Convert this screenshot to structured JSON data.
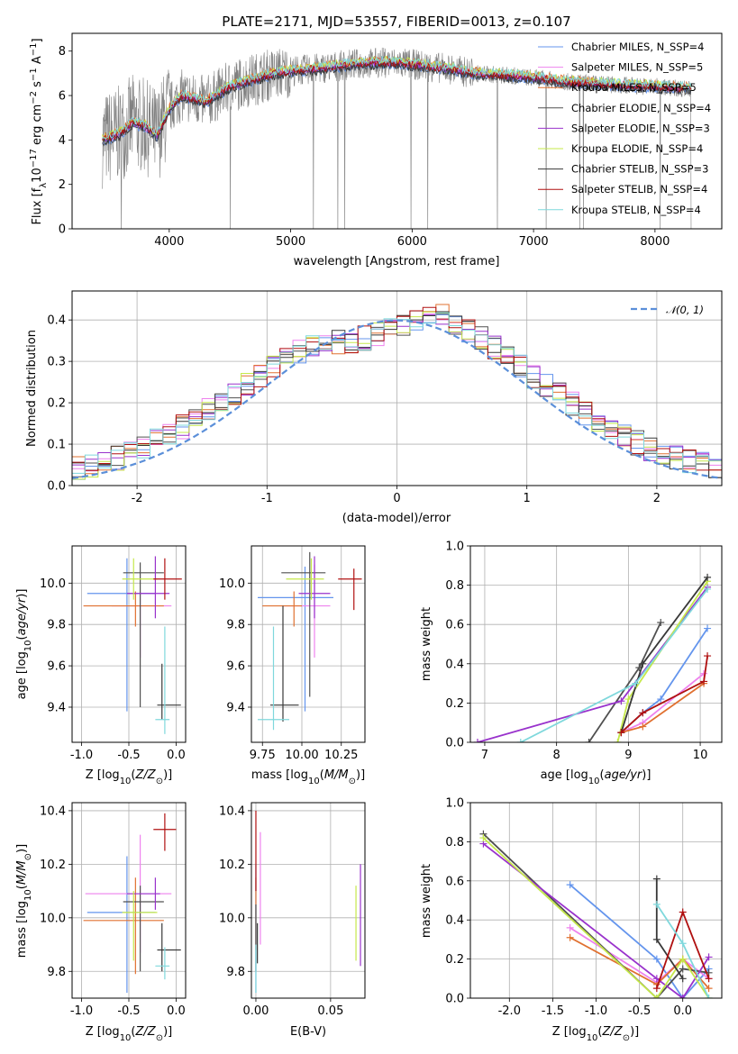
{
  "chart_data": [
    {
      "type": "line",
      "title": "PLATE=2171, MJD=53557, FIBERID=0013, z=0.107",
      "xlabel": "wavelength [Angstrom, rest frame]",
      "ylabel": "Flux [f_λ 10^-17 erg cm^-2 s^-1 A^-1]",
      "xlim": [
        3200,
        8550
      ],
      "ylim": [
        0,
        8.8
      ],
      "xticks": [
        4000,
        5000,
        6000,
        7000,
        8000
      ],
      "yticks": [
        0,
        2,
        4,
        6,
        8
      ],
      "legend_position": "right",
      "observed_spectrum_color": "#808080",
      "model_continuum": {
        "x": [
          3450,
          3600,
          3700,
          3800,
          3900,
          4000,
          4100,
          4300,
          4500,
          4800,
          5000,
          5200,
          5500,
          5800,
          6000,
          6300,
          6500,
          6800,
          7000,
          7300,
          7600,
          8000,
          8300
        ],
        "y": [
          4.0,
          4.3,
          4.8,
          4.6,
          4.2,
          5.4,
          6.0,
          5.7,
          6.4,
          6.9,
          7.1,
          7.2,
          7.4,
          7.5,
          7.4,
          7.2,
          7.0,
          6.9,
          6.8,
          6.6,
          6.5,
          6.4,
          6.3
        ]
      },
      "series": [
        {
          "name": "Chabrier MILES, N_SSP=4",
          "color": "#6495ed"
        },
        {
          "name": "Salpeter MILES, N_SSP=5",
          "color": "#ee82ee"
        },
        {
          "name": "Kroupa MILES, N_SSP=5",
          "color": "#e07030"
        },
        {
          "name": "Chabrier ELODIE, N_SSP=4",
          "color": "#505050"
        },
        {
          "name": "Salpeter ELODIE, N_SSP=3",
          "color": "#9932cc"
        },
        {
          "name": "Kroupa ELODIE, N_SSP=4",
          "color": "#c5e84a"
        },
        {
          "name": "Chabrier STELIB, N_SSP=3",
          "color": "#383838"
        },
        {
          "name": "Salpeter STELIB, N_SSP=4",
          "color": "#b01010"
        },
        {
          "name": "Kroupa STELIB, N_SSP=4",
          "color": "#7fd8dc"
        }
      ]
    },
    {
      "type": "line",
      "xlabel": "(data-model)/error",
      "ylabel": "Normed distribution",
      "xlim": [
        -2.5,
        2.5
      ],
      "ylim": [
        0,
        0.47
      ],
      "xticks": [
        -2,
        -1,
        0,
        1,
        2
      ],
      "yticks": [
        0.0,
        0.1,
        0.2,
        0.3,
        0.4
      ],
      "legend": "𝒩(0, 1)",
      "legend_position": "top-right",
      "normal_color": "#5b8fd9",
      "histogram_bin_width": 0.1,
      "histogram_base": [
        0.045,
        0.05,
        0.058,
        0.067,
        0.078,
        0.092,
        0.108,
        0.125,
        0.143,
        0.163,
        0.183,
        0.204,
        0.225,
        0.247,
        0.268,
        0.287,
        0.305,
        0.321,
        0.334,
        0.343,
        0.348,
        0.35,
        0.356,
        0.365,
        0.378,
        0.392,
        0.405,
        0.412,
        0.408,
        0.395,
        0.376,
        0.355,
        0.332,
        0.31,
        0.287,
        0.264,
        0.241,
        0.218,
        0.196,
        0.175,
        0.155,
        0.136,
        0.119,
        0.103,
        0.089,
        0.077,
        0.066,
        0.057,
        0.05,
        0.045
      ]
    },
    {
      "type": "scatter",
      "xlabel": "Z [log10(Z/Z⊙)]",
      "ylabel": "age  [log10(age/yr)]",
      "xlim": [
        -1.1,
        0.1
      ],
      "ylim": [
        9.23,
        10.18
      ],
      "xticks": [
        -1.0,
        -0.5,
        0.0
      ],
      "yticks": [
        9.4,
        9.6,
        9.8,
        10.0
      ],
      "points": [
        {
          "x": -0.52,
          "y": 9.95,
          "xerr": [
            0.42,
            0.3
          ],
          "yerr": [
            0.57,
            0.17
          ],
          "color": "#6495ed"
        },
        {
          "x": -0.38,
          "y": 9.89,
          "xerr": [
            0.3,
            0.33
          ],
          "yerr": [
            0.25,
            0.07
          ],
          "color": "#ee82ee"
        },
        {
          "x": -0.43,
          "y": 9.89,
          "xerr": [
            0.55,
            0.3
          ],
          "yerr": [
            0.1,
            0.07
          ],
          "color": "#e07030"
        },
        {
          "x": -0.38,
          "y": 10.05,
          "xerr": [
            0.18,
            0.25
          ],
          "yerr": [
            0.65,
            0.05
          ],
          "color": "#505050"
        },
        {
          "x": -0.22,
          "y": 9.95,
          "xerr": [
            0.3,
            0.15
          ],
          "yerr": [
            0.12,
            0.18
          ],
          "color": "#9932cc"
        },
        {
          "x": -0.45,
          "y": 10.02,
          "xerr": [
            0.12,
            0.25
          ],
          "yerr": [
            0.1,
            0.1
          ],
          "color": "#c5e84a"
        },
        {
          "x": -0.15,
          "y": 9.41,
          "xerr": [
            0.05,
            0.2
          ],
          "yerr": [
            0.07,
            0.2
          ],
          "color": "#383838"
        },
        {
          "x": -0.12,
          "y": 10.02,
          "xerr": [
            0.12,
            0.18
          ],
          "yerr": [
            0.1,
            0.1
          ],
          "color": "#b01010"
        },
        {
          "x": -0.12,
          "y": 9.34,
          "xerr": [
            0.1,
            0.05
          ],
          "yerr": [
            0.07,
            0.45
          ],
          "color": "#7fd8dc"
        }
      ]
    },
    {
      "type": "scatter",
      "xlabel": "mass [log10(M/M⊙)]",
      "ylabel": "",
      "xlim": [
        9.68,
        10.4
      ],
      "ylim": [
        9.23,
        10.18
      ],
      "xticks": [
        9.75,
        10.0,
        10.25
      ],
      "yticks": [
        9.4,
        9.6,
        9.8,
        10.0
      ],
      "points": [
        {
          "x": 10.02,
          "y": 9.93,
          "xerr": [
            0.3,
            0.18
          ],
          "yerr": [
            0.55,
            0.15
          ],
          "color": "#6495ed"
        },
        {
          "x": 10.08,
          "y": 9.89,
          "xerr": [
            0.2,
            0.1
          ],
          "yerr": [
            0.25,
            0.2
          ],
          "color": "#ee82ee"
        },
        {
          "x": 9.95,
          "y": 9.89,
          "xerr": [
            0.2,
            0.05
          ],
          "yerr": [
            0.1,
            0.07
          ],
          "color": "#e07030"
        },
        {
          "x": 10.05,
          "y": 10.05,
          "xerr": [
            0.18,
            0.1
          ],
          "yerr": [
            0.6,
            0.1
          ],
          "color": "#505050"
        },
        {
          "x": 10.08,
          "y": 9.95,
          "xerr": [
            0.1,
            0.1
          ],
          "yerr": [
            0.12,
            0.18
          ],
          "color": "#9932cc"
        },
        {
          "x": 10.06,
          "y": 10.02,
          "xerr": [
            0.16,
            0.08
          ],
          "yerr": [
            0.1,
            0.1
          ],
          "color": "#c5e84a"
        },
        {
          "x": 9.88,
          "y": 9.41,
          "xerr": [
            0.08,
            0.1
          ],
          "yerr": [
            0.08,
            0.48
          ],
          "color": "#383838"
        },
        {
          "x": 10.33,
          "y": 10.02,
          "xerr": [
            0.1,
            0.05
          ],
          "yerr": [
            0.15,
            0.05
          ],
          "color": "#b01010"
        },
        {
          "x": 9.82,
          "y": 9.34,
          "xerr": [
            0.1,
            0.1
          ],
          "yerr": [
            0.05,
            0.45
          ],
          "color": "#7fd8dc"
        }
      ]
    },
    {
      "type": "line",
      "xlabel": "age  [log10(age/yr)]",
      "ylabel": "mass weight",
      "xlim": [
        6.8,
        10.3
      ],
      "ylim": [
        0,
        1.0
      ],
      "xticks": [
        7,
        8,
        9,
        10
      ],
      "yticks": [
        0.0,
        0.2,
        0.4,
        0.6,
        0.8,
        1.0
      ],
      "series": [
        {
          "color": "#6495ed",
          "x": [
            8.9,
            9.2,
            9.45,
            10.1
          ],
          "y": [
            0.05,
            0.15,
            0.22,
            0.58
          ]
        },
        {
          "color": "#ee82ee",
          "x": [
            8.9,
            9.2,
            10.05
          ],
          "y": [
            0.05,
            0.1,
            0.35
          ]
        },
        {
          "color": "#e07030",
          "x": [
            8.9,
            9.2,
            10.05
          ],
          "y": [
            0.05,
            0.08,
            0.3
          ]
        },
        {
          "color": "#505050",
          "x": [
            8.45,
            9.15,
            9.45
          ],
          "y": [
            0.0,
            0.38,
            0.61
          ]
        },
        {
          "color": "#9932cc",
          "x": [
            6.9,
            8.9,
            10.1
          ],
          "y": [
            0.0,
            0.21,
            0.79
          ]
        },
        {
          "color": "#c5e84a",
          "x": [
            8.85,
            9.0,
            10.1
          ],
          "y": [
            0.0,
            0.22,
            0.82
          ]
        },
        {
          "color": "#383838",
          "x": [
            8.9,
            9.2,
            10.1
          ],
          "y": [
            0.05,
            0.4,
            0.84
          ]
        },
        {
          "color": "#b01010",
          "x": [
            8.9,
            9.2,
            10.05,
            10.1
          ],
          "y": [
            0.05,
            0.15,
            0.31,
            0.44
          ]
        },
        {
          "color": "#7fd8dc",
          "x": [
            7.5,
            9.1,
            10.1
          ],
          "y": [
            0.0,
            0.3,
            0.78
          ]
        }
      ]
    },
    {
      "type": "scatter",
      "xlabel": "Z [log10(Z/Z⊙)]",
      "ylabel": "mass [log10(M/M⊙)]",
      "xlim": [
        -1.1,
        0.1
      ],
      "ylim": [
        9.7,
        10.43
      ],
      "xticks": [
        -1.0,
        -0.5,
        0.0
      ],
      "yticks": [
        9.8,
        10.0,
        10.2,
        10.4
      ],
      "points": [
        {
          "x": -0.52,
          "y": 10.02,
          "xerr": [
            0.42,
            0.3
          ],
          "yerr": [
            0.3,
            0.21
          ],
          "color": "#6495ed"
        },
        {
          "x": -0.38,
          "y": 10.09,
          "xerr": [
            0.58,
            0.33
          ],
          "yerr": [
            0.22,
            0.22
          ],
          "color": "#ee82ee"
        },
        {
          "x": -0.43,
          "y": 9.99,
          "xerr": [
            0.55,
            0.3
          ],
          "yerr": [
            0.2,
            0.16
          ],
          "color": "#e07030"
        },
        {
          "x": -0.38,
          "y": 10.06,
          "xerr": [
            0.18,
            0.25
          ],
          "yerr": [
            0.26,
            0.06
          ],
          "color": "#505050"
        },
        {
          "x": -0.22,
          "y": 10.09,
          "xerr": [
            0.3,
            0.05
          ],
          "yerr": [
            0.06,
            0.06
          ],
          "color": "#9932cc"
        },
        {
          "x": -0.45,
          "y": 10.02,
          "xerr": [
            0.12,
            0.25
          ],
          "yerr": [
            0.18,
            0.08
          ],
          "color": "#c5e84a"
        },
        {
          "x": -0.15,
          "y": 9.88,
          "xerr": [
            0.05,
            0.2
          ],
          "yerr": [
            0.08,
            0.1
          ],
          "color": "#383838"
        },
        {
          "x": -0.12,
          "y": 10.33,
          "xerr": [
            0.12,
            0.12
          ],
          "yerr": [
            0.08,
            0.06
          ],
          "color": "#b01010"
        },
        {
          "x": -0.12,
          "y": 9.82,
          "xerr": [
            0.1,
            0.05
          ],
          "yerr": [
            0.05,
            0.07
          ],
          "color": "#7fd8dc"
        }
      ]
    },
    {
      "type": "scatter",
      "xlabel": "E(B-V)",
      "ylabel": "",
      "xlim": [
        -0.003,
        0.073
      ],
      "ylim": [
        9.7,
        10.43
      ],
      "xticks": [
        0.0,
        0.05
      ],
      "yticks": [
        9.8,
        10.0,
        10.2,
        10.4
      ],
      "points": [
        {
          "x": 0.0,
          "y": 10.0,
          "yerr": [
            0.28,
            0.2
          ],
          "color": "#6495ed"
        },
        {
          "x": 0.003,
          "y": 10.1,
          "yerr": [
            0.2,
            0.22
          ],
          "color": "#ee82ee"
        },
        {
          "x": 0.0,
          "y": 10.0,
          "yerr": [
            0.12,
            0.15
          ],
          "color": "#e07030"
        },
        {
          "x": 0.0,
          "y": 9.95,
          "yerr": [
            0.15,
            0.1
          ],
          "color": "#505050"
        },
        {
          "x": 0.07,
          "y": 10.0,
          "yerr": [
            0.18,
            0.2
          ],
          "color": "#9932cc"
        },
        {
          "x": 0.067,
          "y": 9.98,
          "yerr": [
            0.14,
            0.14
          ],
          "color": "#c5e84a"
        },
        {
          "x": 0.001,
          "y": 9.88,
          "yerr": [
            0.05,
            0.1
          ],
          "color": "#383838"
        },
        {
          "x": 0.0,
          "y": 10.2,
          "yerr": [
            0.1,
            0.2
          ],
          "color": "#b01010"
        },
        {
          "x": 0.0,
          "y": 9.82,
          "yerr": [
            0.1,
            0.08
          ],
          "color": "#7fd8dc"
        }
      ]
    },
    {
      "type": "line",
      "xlabel": "Z [log10(Z/Z⊙)]",
      "ylabel": "mass weight",
      "xlim": [
        -2.45,
        0.45
      ],
      "ylim": [
        0,
        1.0
      ],
      "xticks": [
        -2.0,
        -1.5,
        -1.0,
        -0.5,
        0.0
      ],
      "yticks": [
        0.0,
        0.2,
        0.4,
        0.6,
        0.8,
        1.0
      ],
      "series": [
        {
          "color": "#6495ed",
          "x": [
            -1.3,
            -0.3,
            0.0,
            0.3
          ],
          "y": [
            0.58,
            0.2,
            0.0,
            0.15
          ]
        },
        {
          "color": "#ee82ee",
          "x": [
            -1.3,
            -0.3,
            0.0,
            0.3
          ],
          "y": [
            0.36,
            0.08,
            0.2,
            0.1
          ]
        },
        {
          "color": "#e07030",
          "x": [
            -1.3,
            -0.3,
            0.0,
            0.3
          ],
          "y": [
            0.31,
            0.07,
            0.2,
            0.05
          ]
        },
        {
          "color": "#505050",
          "x": [
            -2.3,
            -0.3,
            0.0,
            0.3
          ],
          "y": [
            0.84,
            0.0,
            0.15,
            0.13
          ]
        },
        {
          "color": "#9932cc",
          "x": [
            -2.3,
            -0.3,
            0.0,
            0.3
          ],
          "y": [
            0.79,
            0.1,
            0.0,
            0.21
          ]
        },
        {
          "color": "#c5e84a",
          "x": [
            -2.3,
            -0.3,
            0.0,
            0.3
          ],
          "y": [
            0.82,
            0.0,
            0.2,
            0.0
          ]
        },
        {
          "color": "#383838",
          "x": [
            -0.3,
            -0.3,
            0.0
          ],
          "y": [
            0.61,
            0.3,
            0.1
          ]
        },
        {
          "color": "#b01010",
          "x": [
            -0.3,
            0.0,
            0.3
          ],
          "y": [
            0.05,
            0.44,
            0.1
          ]
        },
        {
          "color": "#7fd8dc",
          "x": [
            -0.3,
            0.0,
            0.3
          ],
          "y": [
            0.48,
            0.28,
            0.0
          ]
        }
      ]
    }
  ]
}
